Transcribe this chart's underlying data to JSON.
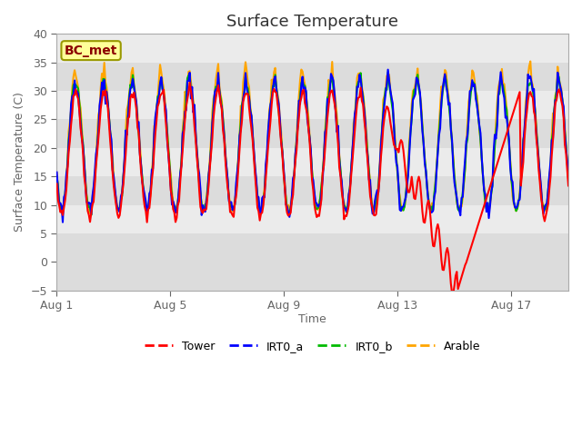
{
  "title": "Surface Temperature",
  "ylabel": "Surface Temperature (C)",
  "xlabel": "Time",
  "ylim": [
    -5,
    40
  ],
  "yticks": [
    -5,
    0,
    5,
    10,
    15,
    20,
    25,
    30,
    35,
    40
  ],
  "xtick_labels": [
    "Aug 1",
    "Aug 5",
    "Aug 9",
    "Aug 13",
    "Aug 17"
  ],
  "xtick_positions": [
    0,
    4,
    8,
    12,
    16
  ],
  "annotation_label": "BC_met",
  "colors": {
    "Tower": "#FF0000",
    "IRT0_a": "#0000FF",
    "IRT0_b": "#00BB00",
    "Arable": "#FFA500"
  },
  "n_days": 18,
  "band_boundaries": [
    -5,
    5,
    10,
    15,
    20,
    25,
    30,
    35,
    40
  ],
  "band_colors_even": "#DCDCDC",
  "band_colors_odd": "#EBEBEB",
  "spine_color": "#AAAAAA",
  "tick_color": "#666666",
  "title_color": "#333333",
  "fig_bg": "#FFFFFF",
  "plot_bg": "#E8E8E8"
}
